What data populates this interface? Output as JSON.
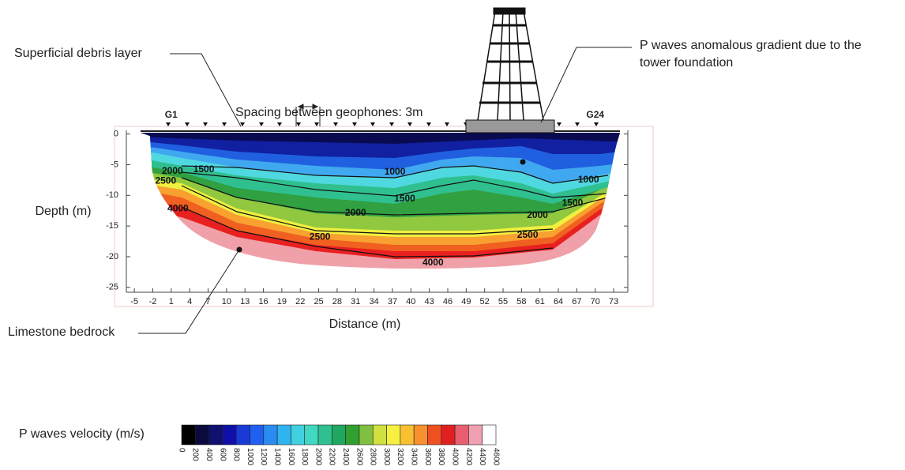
{
  "chart_data": {
    "type": "contour",
    "x_label": "Distance (m)",
    "y_label": "Depth (m)",
    "xlim": [
      -6.3,
      75.3
    ],
    "ylim": [
      -25.8,
      0.6
    ],
    "xticks": [
      -5,
      -2,
      1,
      4,
      7,
      10,
      13,
      16,
      19,
      22,
      25,
      28,
      31,
      34,
      37,
      40,
      43,
      46,
      49,
      52,
      55,
      58,
      61,
      64,
      67,
      70,
      73
    ],
    "yticks": [
      0,
      -5,
      -10,
      -15,
      -20,
      -25
    ],
    "grid": false,
    "geophones": {
      "labels": [
        "G1",
        "G24"
      ],
      "x": [
        1,
        70
      ]
    },
    "contour_labels": {
      "x": [
        1.2,
        0.1,
        6.3,
        37.4,
        39,
        31,
        60.6,
        25.2,
        59,
        68.9,
        66.3,
        2.1,
        43.6
      ],
      "y": [
        -6.1,
        -7.7,
        -5.8,
        -6.2,
        -10.6,
        -12.9,
        -13.3,
        -16.8,
        -16.5,
        -7.5,
        -11.3,
        -12.2,
        -21
      ],
      "values": [
        2000,
        2500,
        1500,
        1000,
        1500,
        2000,
        2000,
        2500,
        2500,
        1000,
        1500,
        4000,
        4000
      ]
    },
    "annotations": {
      "debris": "Superficial debris layer",
      "spacing": "Spacing between geophones: 3m",
      "tower": [
        "P waves anomalous gradient due to the",
        "tower foundation"
      ],
      "bedrock": "Limestone bedrock"
    },
    "colorbar": {
      "label": "P waves velocity (m/s)",
      "ticks": [
        0,
        200,
        400,
        600,
        800,
        1000,
        1200,
        1400,
        1600,
        1800,
        2000,
        2200,
        2400,
        2600,
        2800,
        3000,
        3200,
        3400,
        3600,
        3800,
        4000,
        4200,
        4400,
        4600
      ],
      "colors": [
        "#000000",
        "#0a0a3c",
        "#101070",
        "#1010a8",
        "#1a3ad8",
        "#2060f0",
        "#2a8cf0",
        "#30b4f0",
        "#40d0e0",
        "#40d8c0",
        "#30c090",
        "#20a860",
        "#30a030",
        "#80c040",
        "#d0e040",
        "#f8f040",
        "#f8c030",
        "#f89030",
        "#f05020",
        "#e02020",
        "#e86070",
        "#f0a0b0",
        "#ffffff"
      ]
    }
  }
}
